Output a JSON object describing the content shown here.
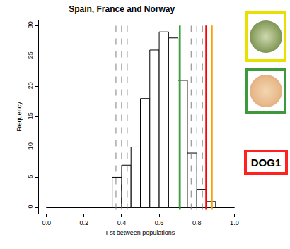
{
  "chart_data": {
    "type": "histogram",
    "title": "Spain, France and Norway",
    "x_label": "Fst between populations",
    "y_label": "Frequency",
    "bins": [
      0.0,
      0.05,
      0.1,
      0.15,
      0.2,
      0.25,
      0.3,
      0.35,
      0.4,
      0.45,
      0.5,
      0.55,
      0.6,
      0.65,
      0.7,
      0.75,
      0.8,
      0.85,
      0.9,
      0.95,
      1.0
    ],
    "values": [
      0,
      0,
      0,
      0,
      0,
      0,
      0,
      5,
      7,
      10,
      18,
      26,
      29,
      28,
      21,
      9,
      3,
      1,
      0,
      0
    ],
    "color": "#ffffff",
    "xlim": [
      -0.04,
      1.04
    ],
    "xticks": [
      {
        "value": 0,
        "label": "0.0"
      },
      {
        "value": 0.2,
        "label": "0.2"
      },
      {
        "value": 0.4,
        "label": "0.4"
      },
      {
        "value": 0.6,
        "label": "0.6"
      },
      {
        "value": 0.8,
        "label": "0.8"
      },
      {
        "value": 1,
        "label": "1.0"
      }
    ],
    "ylim": [
      -1,
      31
    ],
    "yticks": [
      0,
      5,
      10,
      15,
      20,
      25,
      30
    ],
    "grid": false,
    "vertical_lines": [
      {
        "x": 0.37,
        "color": "#808080",
        "line_style": "dashed"
      },
      {
        "x": 0.4,
        "color": "#808080",
        "line_style": "dashed"
      },
      {
        "x": 0.43,
        "color": "#808080",
        "line_style": "dashed"
      },
      {
        "x": 0.77,
        "color": "#808080",
        "line_style": "dashed"
      },
      {
        "x": 0.8,
        "color": "#808080",
        "line_style": "dashed"
      },
      {
        "x": 0.83,
        "color": "#808080",
        "line_style": "dashed"
      },
      {
        "x": 0.71,
        "color": "#2ca02c",
        "line_style": "solid"
      },
      {
        "x": 0.85,
        "color": "#ff0000",
        "line_style": "solid"
      },
      {
        "x": 0.88,
        "color": "#f5a000",
        "line_style": "solid"
      }
    ],
    "key": [
      {
        "color": "#e8e000"
      },
      {
        "color": "#3c9a3c"
      },
      {
        "color": "#ff2020",
        "label": "DOG1"
      }
    ]
  }
}
